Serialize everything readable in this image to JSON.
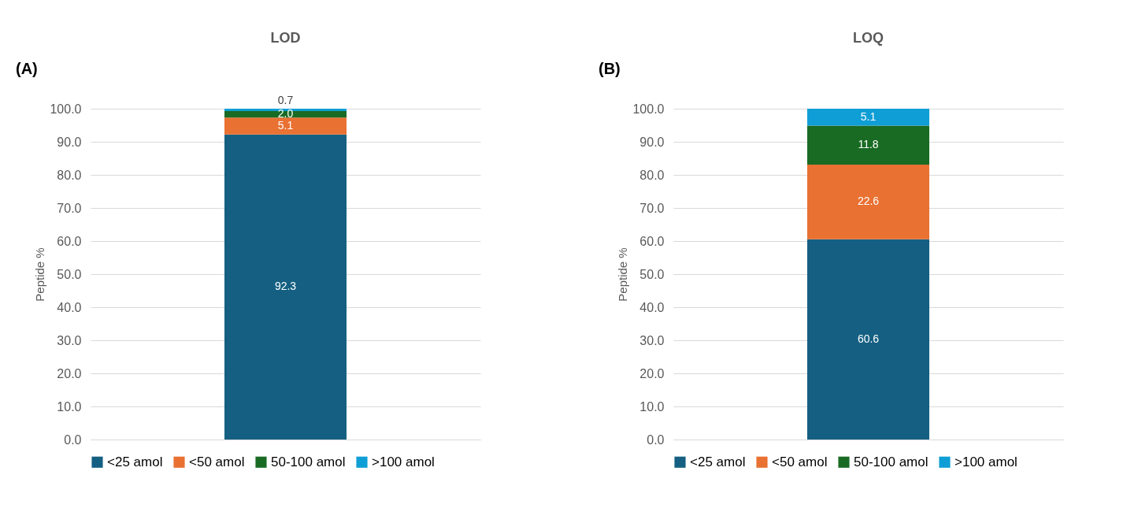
{
  "chart_data": [
    {
      "type": "bar",
      "title": "LOD",
      "ylabel": "Peptide %",
      "annotations": [
        "(A)"
      ],
      "categories": [
        null
      ],
      "stacked": true,
      "data_labels": true,
      "grid": "y",
      "legend": "bottom",
      "ylim": [
        0,
        100.1
      ],
      "yticks": [
        {
          "value": 0,
          "label": "0.0"
        },
        {
          "value": 10,
          "label": "10.0"
        },
        {
          "value": 20,
          "label": "20.0"
        },
        {
          "value": 30,
          "label": "30.0"
        },
        {
          "value": 40,
          "label": "40.0"
        },
        {
          "value": 50,
          "label": "50.0"
        },
        {
          "value": 60,
          "label": "60.0"
        },
        {
          "value": 70,
          "label": "70.0"
        },
        {
          "value": 80,
          "label": "80.0"
        },
        {
          "value": 90,
          "label": "90.0"
        },
        {
          "value": 100,
          "label": "100.0"
        }
      ],
      "series": [
        {
          "name": "<25 amol",
          "color": "#156082",
          "values": [
            92.3
          ]
        },
        {
          "name": "<50 amol",
          "color": "#e97132",
          "values": [
            5.1
          ]
        },
        {
          "name": "50-100 amol",
          "color": "#196b24",
          "values": [
            2.0
          ],
          "value_labels": [
            "2.0"
          ]
        },
        {
          "name": ">100 amol",
          "color": "#0f9ed5",
          "values": [
            0.7
          ],
          "value_labels": [
            "0.7"
          ]
        }
      ]
    },
    {
      "type": "bar",
      "title": "LOQ",
      "ylabel": "Peptide %",
      "annotations": [
        "(B)"
      ],
      "categories": [
        null
      ],
      "stacked": true,
      "data_labels": true,
      "grid": "y",
      "legend": "bottom",
      "ylim": [
        0,
        100.1
      ],
      "yticks": [
        {
          "value": 0,
          "label": "0.0"
        },
        {
          "value": 10,
          "label": "10.0"
        },
        {
          "value": 20,
          "label": "20.0"
        },
        {
          "value": 30,
          "label": "30.0"
        },
        {
          "value": 40,
          "label": "40.0"
        },
        {
          "value": 50,
          "label": "50.0"
        },
        {
          "value": 60,
          "label": "60.0"
        },
        {
          "value": 70,
          "label": "70.0"
        },
        {
          "value": 80,
          "label": "80.0"
        },
        {
          "value": 90,
          "label": "90.0"
        },
        {
          "value": 100,
          "label": "100.0"
        }
      ],
      "series": [
        {
          "name": "<25 amol",
          "color": "#156082",
          "values": [
            60.6
          ]
        },
        {
          "name": "<50 amol",
          "color": "#e97132",
          "values": [
            22.6
          ]
        },
        {
          "name": "50-100 amol",
          "color": "#196b24",
          "values": [
            11.8
          ]
        },
        {
          "name": ">100 amol",
          "color": "#0f9ed5",
          "values": [
            5.1
          ]
        }
      ]
    }
  ]
}
